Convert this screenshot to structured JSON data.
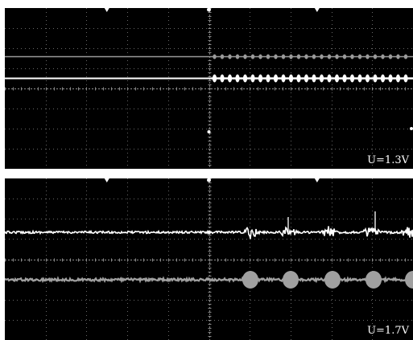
{
  "top_panel": {
    "voltage_label": "U=1.3V",
    "colors": {
      "background": "#000000",
      "grid": "#8a8a8a",
      "trace_upper": "#9a9a9a",
      "trace_lower": "#ffffff"
    }
  },
  "bottom_panel": {
    "voltage_label": "U=1.7V",
    "colors": {
      "background": "#000000",
      "grid": "#8a8a8a",
      "trace_upper": "#ffffff",
      "trace_lower": "#a0a0a0"
    }
  }
}
